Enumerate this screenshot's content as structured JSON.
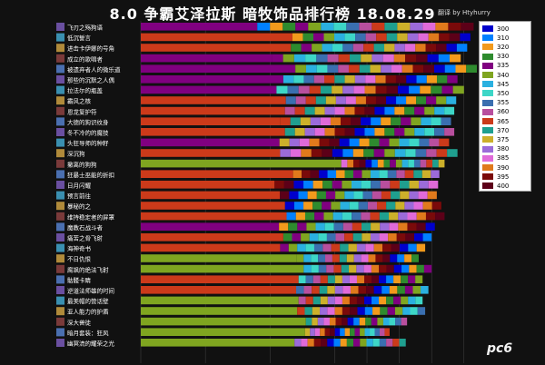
{
  "chart_data": {
    "type": "bar",
    "orientation": "horizontal",
    "stacked": true,
    "title": "8.0 争霸艾泽拉斯 暗牧饰品排行榜 18.08.29",
    "subtitle": "翻译 by Htyhurry",
    "legend_position": "right",
    "grid": true,
    "levels": [
      300,
      310,
      320,
      330,
      335,
      340,
      345,
      350,
      355,
      360,
      365,
      370,
      375,
      380,
      385,
      390,
      395,
      400
    ],
    "colors": [
      "#0000cc",
      "#0080ff",
      "#f29a1c",
      "#2e8b2e",
      "#800080",
      "#7fa520",
      "#2ab0e0",
      "#3dd6c7",
      "#3a6fb0",
      "#b84f9e",
      "#cc3a1a",
      "#1f9f8f",
      "#ccb02a",
      "#9b6bd9",
      "#e06ad9",
      "#e07a1c",
      "#7a0a0a",
      "#5c0018"
    ],
    "categories": [
      "飞刃之殇狗语",
      "低沉誓言",
      "进击卡伊娜的号角",
      "成立的歌唱者",
      "被遗弃者人的微乐道",
      "那些的沉默之人偶",
      "拉法尔的瓶盖",
      "霸风之核",
      "恩龙复护符",
      "大德的狗识纹身",
      "冬不冷的的魔技",
      "头狂导师的种籽",
      "深沉狗",
      "撤离的狗狗",
      "狂暴士巫能的折扣",
      "日月闪耀",
      "预言前往",
      "暴秘的之",
      "维持稳定者的屏罩",
      "魔教石战斗者",
      "痛苦之骨飞射",
      "海神奇书",
      "不日仇恨",
      "腐飒的绝法飞射",
      "骷髅卡睛",
      "逆道法师雄的时间",
      "最美帽的赞话壁",
      "亚人能力的护盾",
      "深大兽徒",
      "暗月套装：狂风",
      "幽冥流的耀荣之光"
    ],
    "series_totals": [
      515,
      510,
      505,
      495,
      520,
      490,
      500,
      488,
      485,
      480,
      485,
      477,
      490,
      470,
      462,
      460,
      458,
      465,
      470,
      455,
      450,
      440,
      430,
      450,
      436,
      445,
      436,
      440,
      412,
      385,
      410
    ],
    "base_color": [
      "#800080",
      "#cc3a1a",
      "#cc3a1a",
      "#800080",
      "#800080",
      "#800080",
      "#800080",
      "#cc3a1a",
      "#cc3a1a",
      "#cc3a1a",
      "#cc3a1a",
      "#800080",
      "#cc3a1a",
      "#7fa520",
      "#cc3a1a",
      "#cc3a1a",
      "#cc3a1a",
      "#cc3a1a",
      "#cc3a1a",
      "#800080",
      "#cc3a1a",
      "#cc3a1a",
      "#7fa520",
      "#7fa520",
      "#cc3a1a",
      "#cc3a1a",
      "#7fa520",
      "#7fa520",
      "#7fa520",
      "#7fa520",
      "#7fa520"
    ],
    "base_fraction": [
      0.35,
      0.46,
      0.46,
      0.41,
      0.46,
      0.45,
      0.42,
      0.46,
      0.46,
      0.45,
      0.46,
      0.45,
      0.44,
      0.66,
      0.51,
      0.45,
      0.47,
      0.48,
      0.48,
      0.47,
      0.49,
      0.49,
      0.56,
      0.56,
      0.56,
      0.54,
      0.56,
      0.55,
      0.62,
      0.66,
      0.58
    ]
  }
}
